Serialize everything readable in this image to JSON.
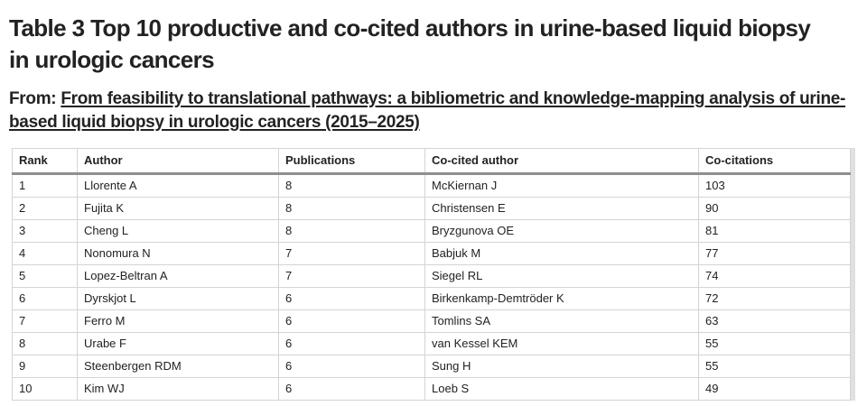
{
  "page": {
    "caption": "Table 3 Top 10 productive and co-cited authors in urine-based liquid biopsy in urologic cancers",
    "from_label": "From:",
    "source_link": "From feasibility to translational pathways: a bibliometric and knowledge-mapping analysis of urine-based liquid biopsy in urologic cancers (2015–2025)"
  },
  "table": {
    "columns": [
      "Rank",
      "Author",
      "Publications",
      "Co-cited author",
      "Co-citations"
    ],
    "rows": [
      [
        "1",
        "Llorente A",
        "8",
        "McKiernan J",
        "103"
      ],
      [
        "2",
        "Fujita K",
        "8",
        "Christensen E",
        "90"
      ],
      [
        "3",
        "Cheng L",
        "8",
        "Bryzgunova OE",
        "81"
      ],
      [
        "4",
        "Nonomura N",
        "7",
        "Babjuk M",
        "77"
      ],
      [
        "5",
        "Lopez-Beltran A",
        "7",
        "Siegel RL",
        "74"
      ],
      [
        "6",
        "Dyrskjot L",
        "6",
        "Birkenkamp-Demtröder K",
        "72"
      ],
      [
        "7",
        "Ferro M",
        "6",
        "Tomlins SA",
        "63"
      ],
      [
        "8",
        "Urabe F",
        "6",
        "van Kessel KEM",
        "55"
      ],
      [
        "9",
        "Steenbergen RDM",
        "6",
        "Sung H",
        "55"
      ],
      [
        "10",
        "Kim WJ",
        "6",
        "Loeb S",
        "49"
      ]
    ]
  },
  "colors": {
    "text": "#222222",
    "border_light": "#d4d4d4",
    "header_rule": "#8f8f8f",
    "scroll_strip": "#e0e0e0"
  }
}
